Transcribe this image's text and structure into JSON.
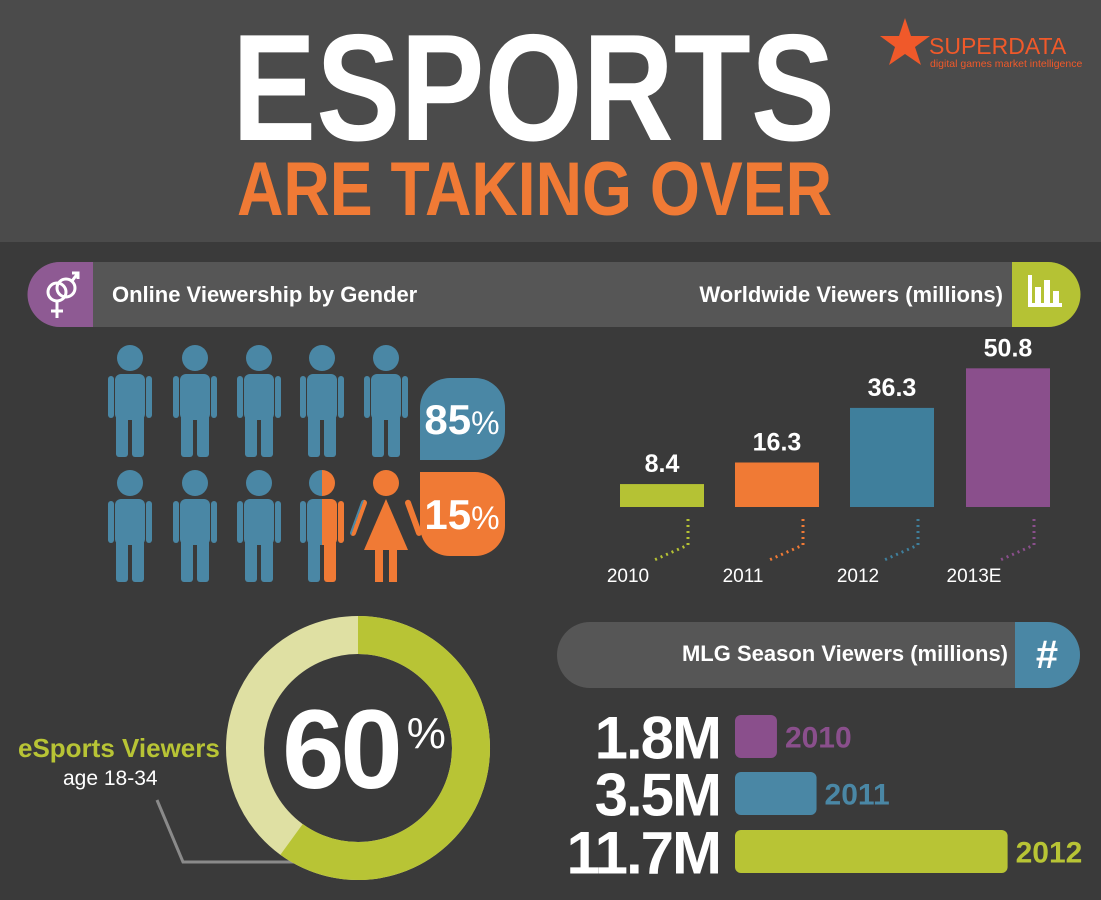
{
  "header": {
    "title": "ESPORTS",
    "subtitle": "ARE TAKING OVER",
    "brand": "SUPERDATA",
    "tagline": "digital games market intelligence"
  },
  "chart_data": [
    {
      "type": "pictograph",
      "title": "Online Viewership by Gender",
      "values": [
        85,
        15
      ],
      "value_labels": [
        "85%",
        "15%"
      ],
      "colors": [
        "#4a87a5",
        "#f07a35"
      ]
    },
    {
      "type": "bar",
      "title": "Worldwide Viewers (millions)",
      "categories": [
        "2010",
        "2011",
        "2012",
        "2013E"
      ],
      "values": [
        8.4,
        16.3,
        36.3,
        50.8
      ],
      "colors": [
        "#b5c234",
        "#f07a35",
        "#3f7f9c",
        "#8a4f8c"
      ]
    },
    {
      "type": "donut",
      "title": "eSports Viewers",
      "subtitle": "age 18-34",
      "values": [
        60
      ],
      "value_labels": [
        "60%"
      ],
      "colors": [
        "#b8c435",
        "#dfe0a3"
      ]
    },
    {
      "type": "hbar",
      "title": "MLG Season Viewers (millions)",
      "icon": "#",
      "categories": [
        "2010",
        "2011",
        "2012"
      ],
      "values": [
        1.8,
        3.5,
        11.7
      ],
      "value_labels": [
        "1.8M",
        "3.5M",
        "11.7M"
      ],
      "colors": [
        "#8a4f8c",
        "#4a87a5",
        "#b8c435"
      ]
    }
  ]
}
